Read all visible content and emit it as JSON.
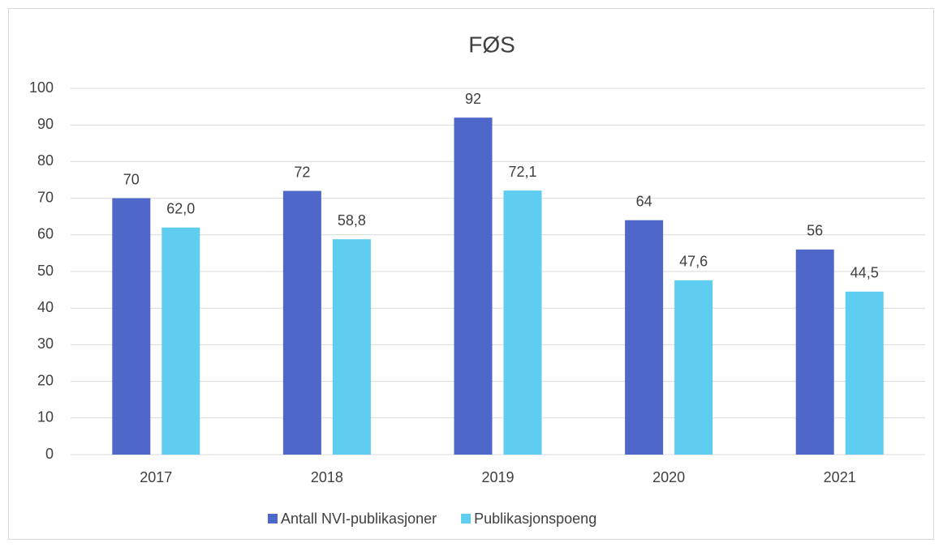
{
  "chart_data": {
    "type": "bar",
    "title": "FØS",
    "categories": [
      "2017",
      "2018",
      "2019",
      "2020",
      "2021"
    ],
    "series": [
      {
        "name": "Antall NVI-publikasjoner",
        "color": "#4f67c8",
        "values": [
          70,
          72,
          92,
          64,
          56
        ]
      },
      {
        "name": "Publikasjonspoeng",
        "color": "#5ecdf0",
        "values": [
          62.0,
          58.8,
          72.1,
          47.6,
          44.5
        ],
        "value_labels": [
          "62,0",
          "58,8",
          "72,1",
          "47,6",
          "44,5"
        ]
      }
    ],
    "ylim": [
      0,
      100
    ],
    "yticks": [
      0,
      10,
      20,
      30,
      40,
      50,
      60,
      70,
      80,
      90,
      100
    ],
    "grid": true,
    "legend": "bottom"
  }
}
